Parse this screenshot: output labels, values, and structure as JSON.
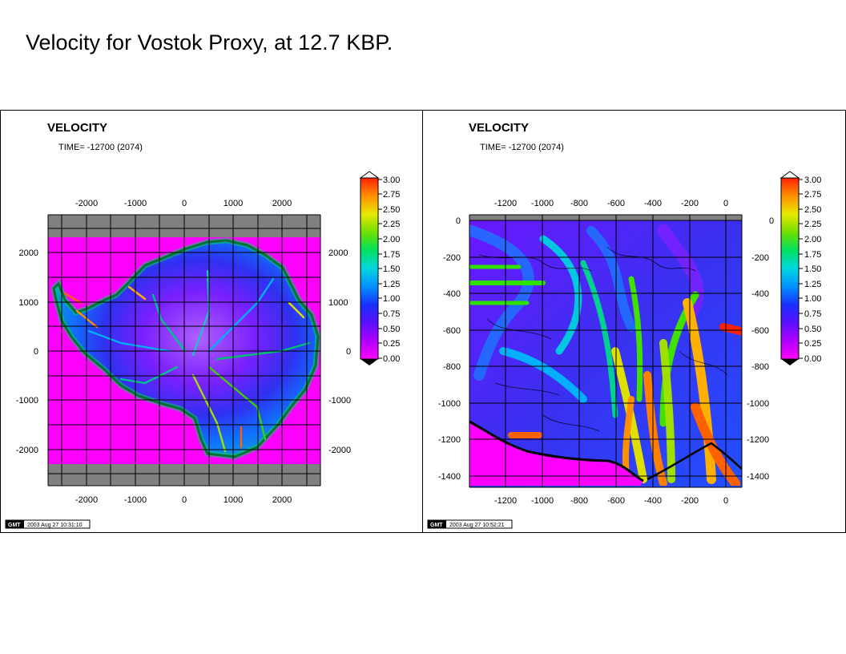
{
  "slide_title": "Velocity for Vostok Proxy, at 12.7 KBP.",
  "colors": {
    "ocean": "#ff00ff",
    "frame": "#808080",
    "colorbar": [
      "#ff00ff",
      "#b000ff",
      "#6a00ff",
      "#2020ff",
      "#0070ff",
      "#00c0ff",
      "#00e8c8",
      "#00e070",
      "#40e000",
      "#a0e000",
      "#e0e000",
      "#ffb000",
      "#ff6000",
      "#ff2000"
    ]
  },
  "panels": [
    {
      "title": "VELOCITY",
      "time_label": "TIME= -12700 (2074)",
      "x_ticks": [
        "-2000",
        "-1000",
        "0",
        "1000",
        "2000"
      ],
      "y_ticks": [
        "2000",
        "1000",
        "0",
        "-1000",
        "-2000"
      ],
      "colorbar_labels": [
        "3.00",
        "2.75",
        "2.50",
        "2.25",
        "2.00",
        "1.75",
        "1.50",
        "1.25",
        "1.00",
        "0.75",
        "0.50",
        "0.25",
        "0.00"
      ],
      "gmt_logo": "GMT",
      "gmt_stamp": "2003 Aug 27 10:31:10"
    },
    {
      "title": "VELOCITY",
      "time_label": "TIME= -12700 (2074)",
      "x_ticks": [
        "-1200",
        "-1000",
        "-800",
        "-600",
        "-400",
        "-200",
        "0"
      ],
      "y_ticks": [
        "0",
        "-200",
        "-400",
        "-600",
        "-800",
        "-1000",
        "-1200",
        "-1400"
      ],
      "colorbar_labels": [
        "3.00",
        "2.75",
        "2.50",
        "2.25",
        "2.00",
        "1.75",
        "1.50",
        "1.25",
        "1.00",
        "0.75",
        "0.50",
        "0.25",
        "0.00"
      ],
      "gmt_logo": "GMT",
      "gmt_stamp": "2003 Aug 27 10:52:21"
    }
  ]
}
